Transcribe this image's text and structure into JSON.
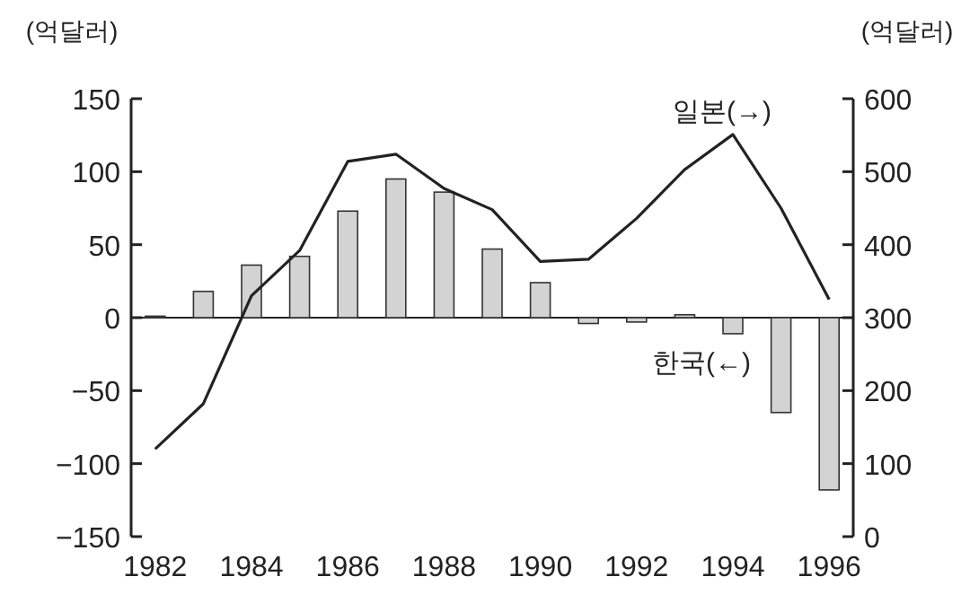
{
  "chart_data": {
    "type": "bar",
    "ylabel": "(억달러)",
    "y2label": "(억달러)",
    "categories": [
      "1982",
      null,
      "1984",
      null,
      "1986",
      null,
      "1988",
      null,
      "1990",
      null,
      "1992",
      null,
      "1994",
      null,
      "1996"
    ],
    "series": [
      {
        "name": "한국(←)",
        "color": "#d3d3d3",
        "values": [
          1,
          18,
          36,
          42,
          73,
          95,
          86,
          47,
          24,
          -4,
          -3,
          2,
          -11,
          -65,
          -118
        ]
      },
      {
        "name": "일본(→)",
        "type": "line",
        "axis": "y2",
        "color": "#222222",
        "values": [
          120,
          182,
          330,
          392,
          514,
          524,
          477,
          448,
          377,
          380,
          436,
          503,
          551,
          450,
          325
        ]
      }
    ],
    "ylim": [
      -150,
      150
    ],
    "yticks": [
      -150,
      -100,
      -50,
      0,
      50,
      100,
      150
    ],
    "y2lim": [
      0,
      600
    ],
    "y2ticks": [
      0,
      100,
      200,
      300,
      400,
      500,
      600
    ]
  }
}
